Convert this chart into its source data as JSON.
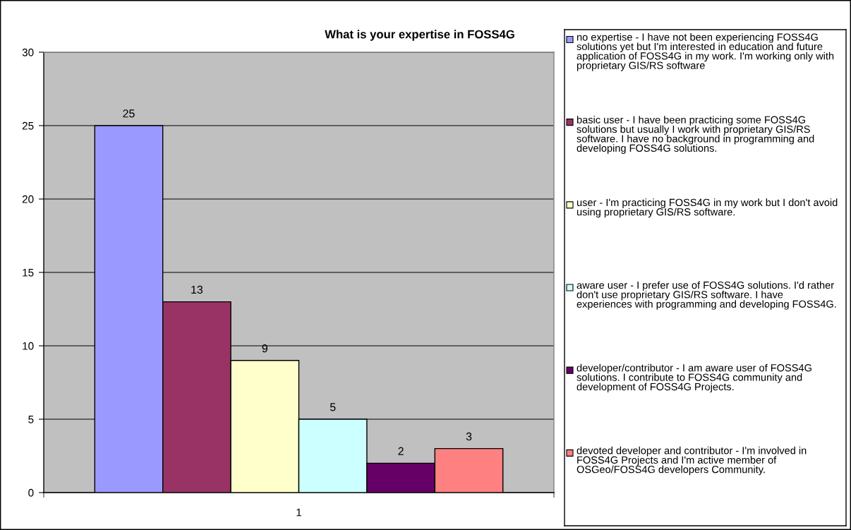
{
  "chart_data": {
    "type": "bar",
    "title": "What is your expertise in FOSS4G",
    "categories": [
      "1"
    ],
    "series": [
      {
        "name": "no expertise - I have not been experiencing FOSS4G solutions yet but I'm interested in education and future application of FOSS4G in my work. I'm working only with proprietary GIS/RS software",
        "color": "#9999ff",
        "values": [
          25
        ]
      },
      {
        "name": "basic user - I have been practicing some FOSS4G solutions but usually I work with proprietary GIS/RS software. I have no background in programming and developing FOSS4G solutions.",
        "color": "#993366",
        "values": [
          13
        ]
      },
      {
        "name": "user - I'm practicing FOSS4G in my work but I don't avoid using proprietary GIS/RS software.",
        "color": "#ffffcc",
        "values": [
          9
        ]
      },
      {
        "name": "aware user - I prefer use of FOSS4G solutions. I'd rather don't use proprietary GIS/RS software. I have experiences with programming and developing FOSS4G.",
        "color": "#ccffff",
        "values": [
          5
        ]
      },
      {
        "name": "developer/contributor - I am aware user of FOSS4G solutions. I contribute to FOSS4G community and development of FOSS4G Projects.",
        "color": "#660066",
        "values": [
          2
        ]
      },
      {
        "name": "devoted developer and contributor - I'm involved in FOSS4G Projects and I'm active member of OSGeo/FOSS4G developers Community.",
        "color": "#ff8080",
        "values": [
          3
        ]
      }
    ],
    "ylim": [
      0,
      30
    ],
    "yticks": [
      0,
      5,
      10,
      15,
      20,
      25,
      30
    ],
    "grid": "y",
    "legend": "right",
    "data_labels": true
  }
}
